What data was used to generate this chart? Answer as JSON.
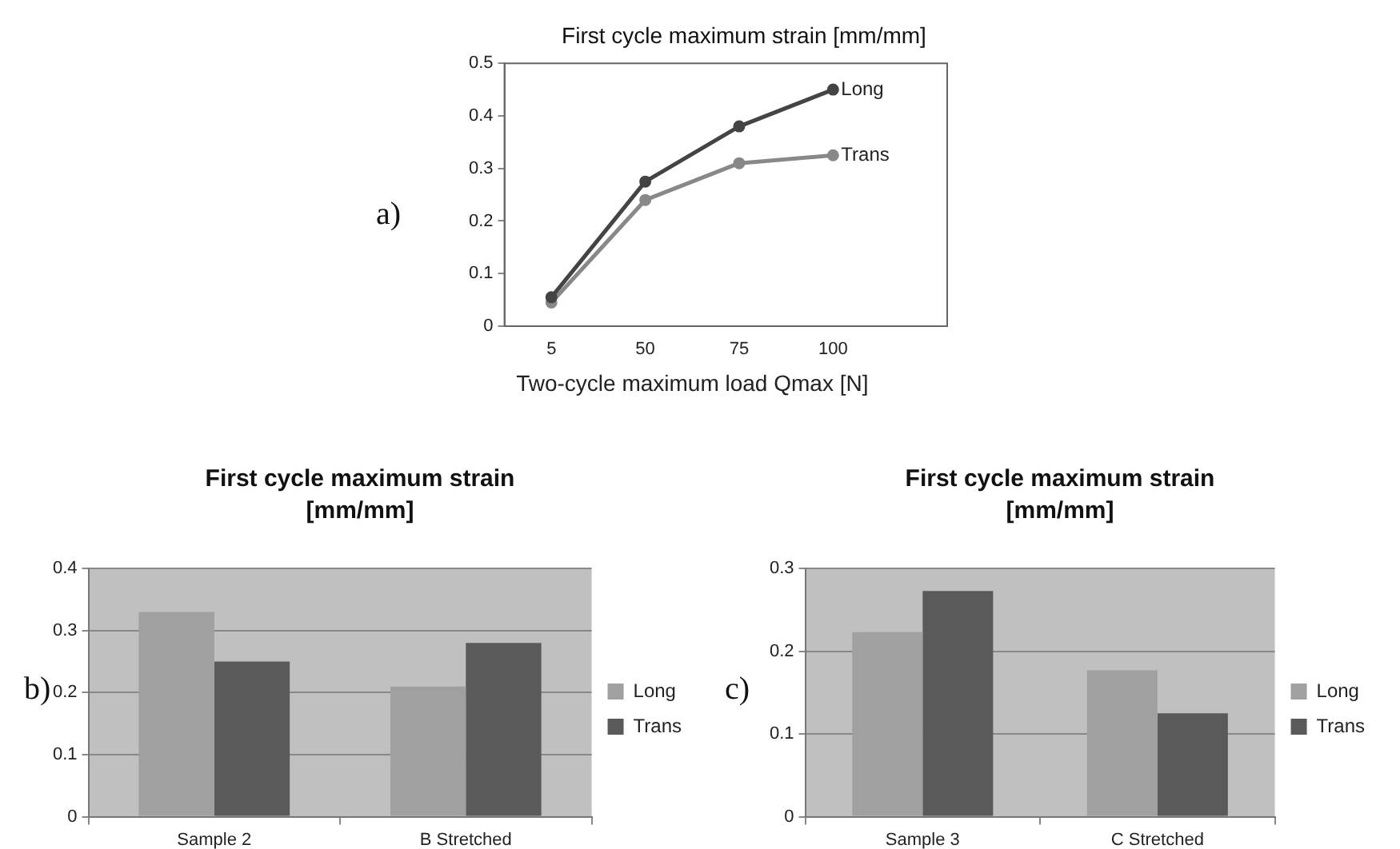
{
  "chart_data": [
    {
      "type": "line",
      "title": "First cycle maximum strain [mm/mm]",
      "xlabel": "Two-cycle maximum load Qmax [N]",
      "annotations": [
        "a)"
      ],
      "categories": [
        "5",
        "50",
        "75",
        "100"
      ],
      "series": [
        {
          "name": "Long",
          "color": "#444444",
          "values": [
            0.055,
            0.275,
            0.38,
            0.45
          ]
        },
        {
          "name": "Trans",
          "color": "#888888",
          "values": [
            0.045,
            0.24,
            0.31,
            0.325
          ]
        }
      ],
      "ylim": [
        0,
        0.5
      ],
      "yticks": [
        0,
        0.1,
        0.2,
        0.3,
        0.4,
        0.5
      ],
      "grid": false,
      "legend": false,
      "marker": "circle",
      "line_style": "solid"
    },
    {
      "type": "bar",
      "title": "First cycle maximum strain [mm/mm]",
      "annotations": [
        "b)"
      ],
      "categories": [
        "Sample 2",
        "B Stretched"
      ],
      "series": [
        {
          "name": "Long",
          "color": "#a0a0a0",
          "values": [
            0.33,
            0.21
          ]
        },
        {
          "name": "Trans",
          "color": "#5a5a5a",
          "values": [
            0.25,
            0.28
          ]
        }
      ],
      "ylim": [
        0,
        0.4
      ],
      "yticks": [
        0,
        0.1,
        0.2,
        0.3,
        0.4
      ],
      "grid": "y",
      "legend": "right"
    },
    {
      "type": "bar",
      "title": "First cycle maximum strain [mm/mm]",
      "annotations": [
        "c)"
      ],
      "categories": [
        "Sample 3",
        "C Stretched"
      ],
      "series": [
        {
          "name": "Long",
          "color": "#a0a0a0",
          "values": [
            0.223,
            0.177
          ]
        },
        {
          "name": "Trans",
          "color": "#5a5a5a",
          "values": [
            0.273,
            0.125
          ]
        }
      ],
      "ylim": [
        0,
        0.3
      ],
      "yticks": [
        0,
        0.1,
        0.2,
        0.3
      ],
      "grid": "y",
      "legend": "right"
    }
  ]
}
